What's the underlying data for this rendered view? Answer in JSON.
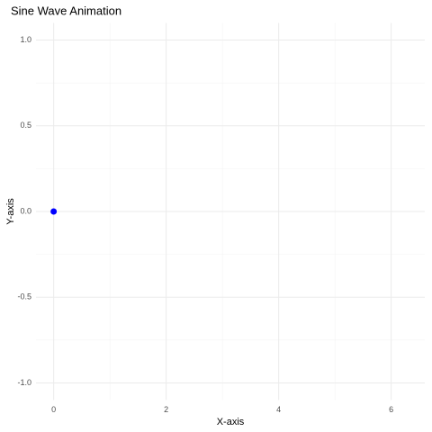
{
  "chart_data": {
    "type": "scatter",
    "title": "Sine Wave Animation",
    "x_label": "X-axis",
    "y_label": "Y-axis",
    "x": [
      0
    ],
    "values": [
      0
    ],
    "color": "#0000ff",
    "xlim": [
      -0.314,
      6.597
    ],
    "xticks": [
      0,
      2,
      4,
      6
    ],
    "ylim": [
      -1.1,
      1.1
    ],
    "yticks": [
      {
        "value": -1,
        "label": "-1.0"
      },
      {
        "value": -0.5,
        "label": "-0.5"
      },
      {
        "value": 0,
        "label": "0.0"
      },
      {
        "value": 0.5,
        "label": "0.5"
      },
      {
        "value": 1,
        "label": "1.0"
      }
    ],
    "grid": true
  }
}
